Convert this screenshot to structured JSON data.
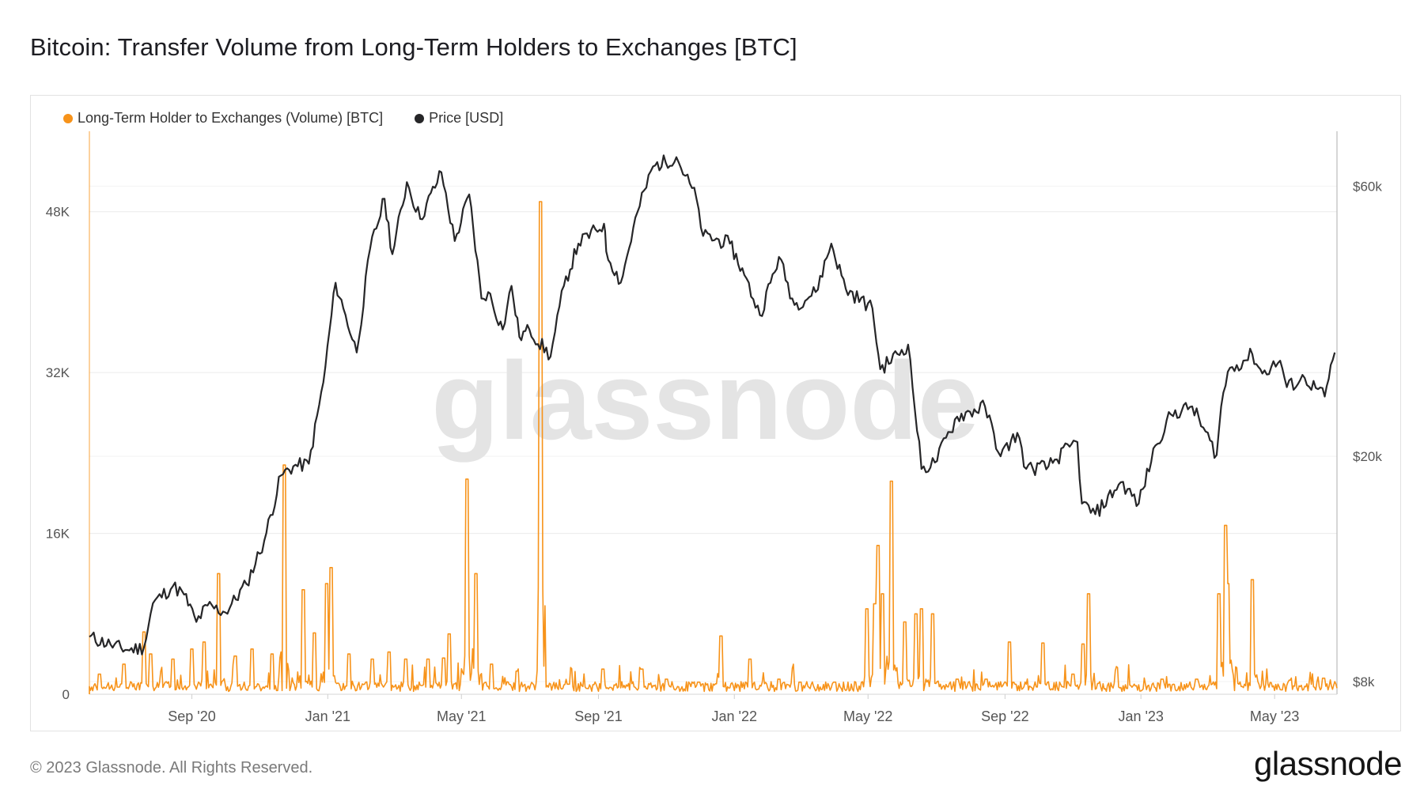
{
  "title": "Bitcoin: Transfer Volume from Long-Term Holders to Exchanges [BTC]",
  "footer": "© 2023 Glassnode. All Rights Reserved.",
  "brand": "glassnode",
  "watermark": "glassnode",
  "colors": {
    "volume": "#f7931a",
    "price": "#262628",
    "grid": "#ececec",
    "axis_text": "#555555"
  },
  "chart_data": {
    "type": "line",
    "legend_position": "top-left",
    "grid": true,
    "series": [
      {
        "name": "Long-Term Holder to Exchanges (Volume) [BTC]",
        "type": "spikes",
        "axis": "left",
        "baseline": 700,
        "points": [
          [
            "2020-06-10",
            2000
          ],
          [
            "2020-07-02",
            3000
          ],
          [
            "2020-07-20",
            6200
          ],
          [
            "2020-07-26",
            4000
          ],
          [
            "2020-08-15",
            3500
          ],
          [
            "2020-09-01",
            4500
          ],
          [
            "2020-09-12",
            5200
          ],
          [
            "2020-09-25",
            12000
          ],
          [
            "2020-10-10",
            3800
          ],
          [
            "2020-10-25",
            4500
          ],
          [
            "2020-11-12",
            4000
          ],
          [
            "2020-11-23",
            22800
          ],
          [
            "2020-12-10",
            10400
          ],
          [
            "2020-12-20",
            6100
          ],
          [
            "2020-12-31",
            11000
          ],
          [
            "2021-01-04",
            12600
          ],
          [
            "2021-01-20",
            4000
          ],
          [
            "2021-02-10",
            3500
          ],
          [
            "2021-02-25",
            4200
          ],
          [
            "2021-03-12",
            3500
          ],
          [
            "2021-04-01",
            3500
          ],
          [
            "2021-04-15",
            3600
          ],
          [
            "2021-04-20",
            6000
          ],
          [
            "2021-05-06",
            21400
          ],
          [
            "2021-05-14",
            12000
          ],
          [
            "2021-05-28",
            3000
          ],
          [
            "2021-06-20",
            2300
          ],
          [
            "2021-07-11",
            49000
          ],
          [
            "2021-08-05",
            1000
          ],
          [
            "2021-09-05",
            2500
          ],
          [
            "2021-10-10",
            2500
          ],
          [
            "2021-11-01",
            1500
          ],
          [
            "2021-11-30",
            1200
          ],
          [
            "2021-12-20",
            5800
          ],
          [
            "2022-01-15",
            3500
          ],
          [
            "2022-02-10",
            1500
          ],
          [
            "2022-03-01",
            1200
          ],
          [
            "2022-04-01",
            1200
          ],
          [
            "2022-04-30",
            8500
          ],
          [
            "2022-05-07",
            9000
          ],
          [
            "2022-05-10",
            14800
          ],
          [
            "2022-05-14",
            10000
          ],
          [
            "2022-05-22",
            21200
          ],
          [
            "2022-06-03",
            7200
          ],
          [
            "2022-06-13",
            8000
          ],
          [
            "2022-06-18",
            8500
          ],
          [
            "2022-06-28",
            8000
          ],
          [
            "2022-07-20",
            1500
          ],
          [
            "2022-08-15",
            1500
          ],
          [
            "2022-09-05",
            5200
          ],
          [
            "2022-10-05",
            5100
          ],
          [
            "2022-11-01",
            2000
          ],
          [
            "2022-11-10",
            5000
          ],
          [
            "2022-11-15",
            10000
          ],
          [
            "2022-12-10",
            1500
          ],
          [
            "2023-01-20",
            1500
          ],
          [
            "2023-02-20",
            1500
          ],
          [
            "2023-03-12",
            10000
          ],
          [
            "2023-03-18",
            16800
          ],
          [
            "2023-03-20",
            11000
          ],
          [
            "2023-04-11",
            11400
          ],
          [
            "2023-05-15",
            1400
          ],
          [
            "2023-06-14",
            1600
          ],
          [
            "2023-06-20",
            800
          ]
        ]
      },
      {
        "name": "Price [USD]",
        "type": "line",
        "axis": "right",
        "points": [
          [
            "2020-06-01",
            9600
          ],
          [
            "2020-06-20",
            9300
          ],
          [
            "2020-07-05",
            9100
          ],
          [
            "2020-07-20",
            9200
          ],
          [
            "2020-07-28",
            11000
          ],
          [
            "2020-08-15",
            11800
          ],
          [
            "2020-08-25",
            11400
          ],
          [
            "2020-09-05",
            10200
          ],
          [
            "2020-09-15",
            10900
          ],
          [
            "2020-10-01",
            10600
          ],
          [
            "2020-10-20",
            11900
          ],
          [
            "2020-11-05",
            14200
          ],
          [
            "2020-11-20",
            18500
          ],
          [
            "2020-12-01",
            19200
          ],
          [
            "2020-12-15",
            19400
          ],
          [
            "2020-12-28",
            27000
          ],
          [
            "2021-01-08",
            40500
          ],
          [
            "2021-01-15",
            36500
          ],
          [
            "2021-01-27",
            30500
          ],
          [
            "2021-02-08",
            46500
          ],
          [
            "2021-02-21",
            57000
          ],
          [
            "2021-02-28",
            45500
          ],
          [
            "2021-03-13",
            61000
          ],
          [
            "2021-03-25",
            52500
          ],
          [
            "2021-04-13",
            63500
          ],
          [
            "2021-04-25",
            48000
          ],
          [
            "2021-05-08",
            58000
          ],
          [
            "2021-05-19",
            38000
          ],
          [
            "2021-05-25",
            39000
          ],
          [
            "2021-06-07",
            33500
          ],
          [
            "2021-06-15",
            40000
          ],
          [
            "2021-06-22",
            32500
          ],
          [
            "2021-07-01",
            33500
          ],
          [
            "2021-07-20",
            30000
          ],
          [
            "2021-08-01",
            40000
          ],
          [
            "2021-08-14",
            47500
          ],
          [
            "2021-09-06",
            51500
          ],
          [
            "2021-09-08",
            46000
          ],
          [
            "2021-09-21",
            40500
          ],
          [
            "2021-10-06",
            54000
          ],
          [
            "2021-10-20",
            65000
          ],
          [
            "2021-11-10",
            67500
          ],
          [
            "2021-11-28",
            57000
          ],
          [
            "2021-12-04",
            49000
          ],
          [
            "2021-12-28",
            47500
          ],
          [
            "2022-01-10",
            41800
          ],
          [
            "2022-01-24",
            35500
          ],
          [
            "2022-02-10",
            45000
          ],
          [
            "2022-02-24",
            37000
          ],
          [
            "2022-03-15",
            39000
          ],
          [
            "2022-03-29",
            47500
          ],
          [
            "2022-04-11",
            39500
          ],
          [
            "2022-05-05",
            36500
          ],
          [
            "2022-05-12",
            28500
          ],
          [
            "2022-06-06",
            31500
          ],
          [
            "2022-06-18",
            19000
          ],
          [
            "2022-06-30",
            19500
          ],
          [
            "2022-07-20",
            23500
          ],
          [
            "2022-08-14",
            24500
          ],
          [
            "2022-08-28",
            20000
          ],
          [
            "2022-09-12",
            22000
          ],
          [
            "2022-09-20",
            19000
          ],
          [
            "2022-10-10",
            19200
          ],
          [
            "2022-10-29",
            20800
          ],
          [
            "2022-11-05",
            21200
          ],
          [
            "2022-11-09",
            16500
          ],
          [
            "2022-11-21",
            15800
          ],
          [
            "2022-12-14",
            18000
          ],
          [
            "2022-12-30",
            16500
          ],
          [
            "2023-01-14",
            20900
          ],
          [
            "2023-01-28",
            23700
          ],
          [
            "2023-02-16",
            24500
          ],
          [
            "2023-03-10",
            20100
          ],
          [
            "2023-03-14",
            24500
          ],
          [
            "2023-03-20",
            28200
          ],
          [
            "2023-04-11",
            30300
          ],
          [
            "2023-04-20",
            28000
          ],
          [
            "2023-05-06",
            29500
          ],
          [
            "2023-05-12",
            26500
          ],
          [
            "2023-05-28",
            27500
          ],
          [
            "2023-06-15",
            25500
          ],
          [
            "2023-06-24",
            30500
          ]
        ]
      }
    ],
    "x_range": [
      "2020-06-01",
      "2023-06-26"
    ],
    "x_ticks": [
      {
        "date": "2020-09-01",
        "label": "Sep '20"
      },
      {
        "date": "2021-01-01",
        "label": "Jan '21"
      },
      {
        "date": "2021-05-01",
        "label": "May '21"
      },
      {
        "date": "2021-09-01",
        "label": "Sep '21"
      },
      {
        "date": "2022-01-01",
        "label": "Jan '22"
      },
      {
        "date": "2022-05-01",
        "label": "May '22"
      },
      {
        "date": "2022-09-01",
        "label": "Sep '22"
      },
      {
        "date": "2023-01-01",
        "label": "Jan '23"
      },
      {
        "date": "2023-05-01",
        "label": "May '23"
      }
    ],
    "y_left": {
      "range": [
        0,
        56000
      ],
      "ticks": [
        {
          "v": 0,
          "label": "0"
        },
        {
          "v": 16000,
          "label": "16K"
        },
        {
          "v": 32000,
          "label": "32K"
        },
        {
          "v": 48000,
          "label": "48K"
        }
      ]
    },
    "y_right": {
      "scale": "log",
      "range": [
        7600,
        75000
      ],
      "ticks": [
        {
          "v": 8000,
          "label": "$8k"
        },
        {
          "v": 20000,
          "label": "$20k"
        },
        {
          "v": 60000,
          "label": "$60k"
        }
      ]
    }
  }
}
